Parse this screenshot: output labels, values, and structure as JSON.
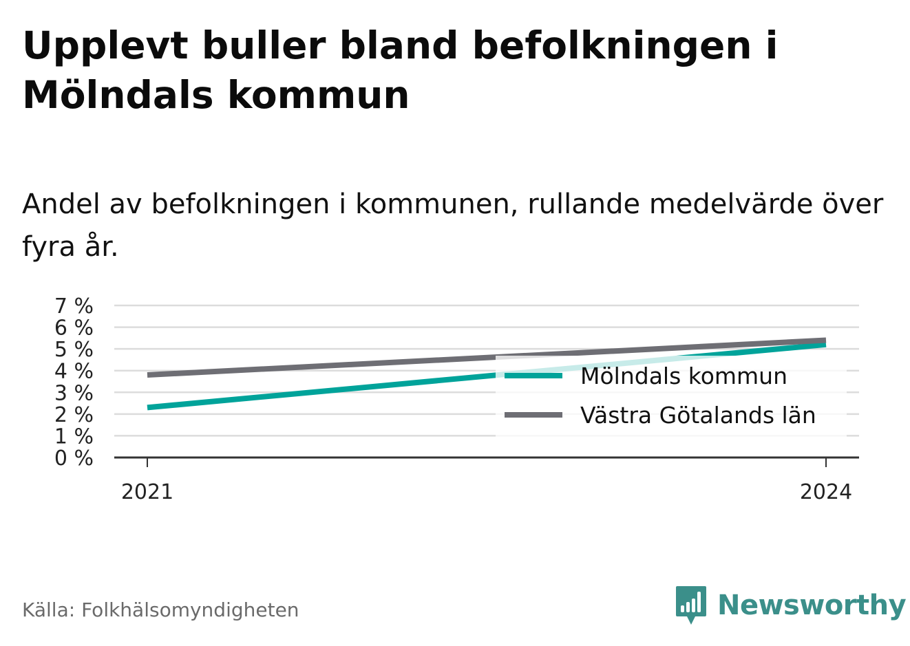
{
  "title": "Upplevt buller bland befolkningen i Mölndals kommun",
  "subtitle": "Andel av befolkningen i kommunen, rullande medelvärde över fyra år.",
  "source": "Källa: Folkhälsomyndigheten",
  "brand": {
    "name": "Newsworthy",
    "icon": "newsworthy-logo-icon",
    "color": "#3b8f8a"
  },
  "chart_data": {
    "type": "line",
    "x": [
      "2021",
      "2024"
    ],
    "x_values": [
      2021,
      2024
    ],
    "ylim": [
      0,
      7
    ],
    "y_ticks": [
      "0 %",
      "1 %",
      "2 %",
      "3 %",
      "4 %",
      "5 %",
      "6 %",
      "7 %"
    ],
    "y_tick_values": [
      0,
      1,
      2,
      3,
      4,
      5,
      6,
      7
    ],
    "grid": true,
    "legend_position": "right",
    "series": [
      {
        "name": "Mölndals kommun",
        "color": "#00a39a",
        "values": [
          2.3,
          5.2
        ]
      },
      {
        "name": "Västra Götalands län",
        "color": "#6e6e74",
        "values": [
          3.8,
          5.4
        ]
      }
    ]
  }
}
